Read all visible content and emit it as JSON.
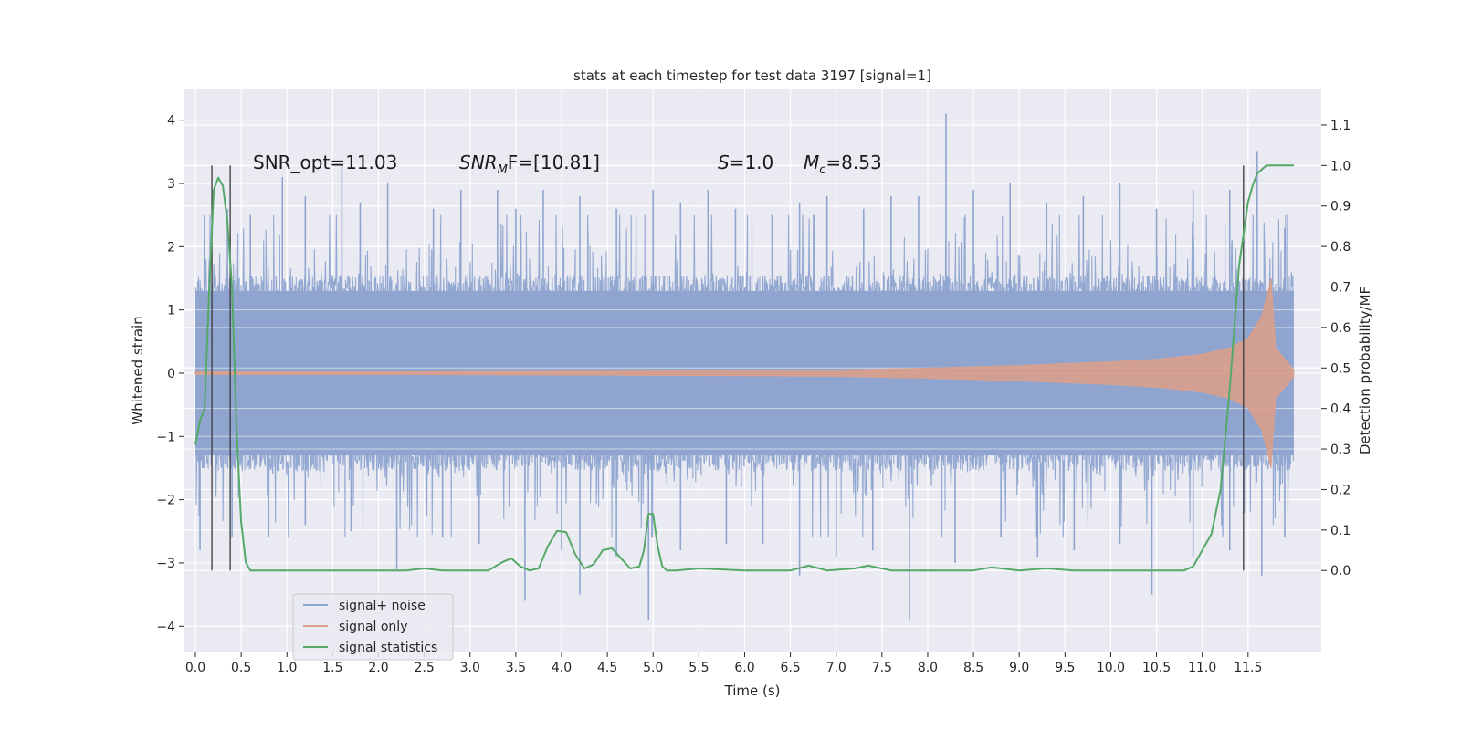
{
  "chart_data": {
    "type": "line",
    "title": "stats at each timestep for test data 3197 [signal=1]",
    "xlabel": "Time (s)",
    "ylabel_left": "Whitened strain",
    "ylabel_right": "Detection probability/MF",
    "xlim": [
      -0.12,
      12.3
    ],
    "ylim_left": [
      -4.4,
      4.5
    ],
    "ylim_right": [
      -0.2,
      1.19
    ],
    "x_ticks": [
      0,
      0.5,
      1,
      1.5,
      2,
      2.5,
      3,
      3.5,
      4,
      4.5,
      5,
      5.5,
      6,
      6.5,
      7,
      7.5,
      8,
      8.5,
      9,
      9.5,
      10,
      10.5,
      11,
      11.5
    ],
    "x_tick_labels": [
      "0.0",
      "0.5",
      "1.0",
      "1.5",
      "2.0",
      "2.5",
      "3.0",
      "3.5",
      "4.0",
      "4.5",
      "5.0",
      "5.5",
      "6.0",
      "6.5",
      "7.0",
      "7.5",
      "8.0",
      "8.5",
      "9.0",
      "9.5",
      "10.0",
      "10.5",
      "11.0",
      "11.5"
    ],
    "y_left_ticks": [
      -4,
      -3,
      -2,
      -1,
      0,
      1,
      2,
      3,
      4
    ],
    "y_left_tick_labels": [
      "−4",
      "−3",
      "−2",
      "−1",
      "0",
      "1",
      "2",
      "3",
      "4"
    ],
    "y_right_ticks": [
      0,
      0.1,
      0.2,
      0.3,
      0.4,
      0.5,
      0.6,
      0.7,
      0.8,
      0.9,
      1.0,
      1.1
    ],
    "y_right_tick_labels": [
      "0.0",
      "0.1",
      "0.2",
      "0.3",
      "0.4",
      "0.5",
      "0.6",
      "0.7",
      "0.8",
      "0.9",
      "1.0",
      "1.1"
    ],
    "grid": true,
    "legend_placement": "lower-left",
    "annotations": [
      {
        "text": "SNR_opt=11.03"
      },
      {
        "text": "SNR",
        "sub": "M",
        "rest": "F=[10.81]"
      },
      {
        "text": "S",
        "rest": "=1.0"
      },
      {
        "text": "M",
        "sub": "c",
        "rest": "=8.53"
      }
    ],
    "vertical_markers": [
      0.18,
      0.38,
      11.45
    ],
    "series": [
      {
        "name": "signal+ noise",
        "color": "#8fa5d0",
        "x_range": [
          0,
          12.0
        ],
        "band_typical": [
          -1.3,
          1.3
        ],
        "peaks_high": [
          [
            0.1,
            2.1
          ],
          [
            0.35,
            2.6
          ],
          [
            0.6,
            2.5
          ],
          [
            0.95,
            3.1
          ],
          [
            1.2,
            2.8
          ],
          [
            1.6,
            3.3
          ],
          [
            1.8,
            2.7
          ],
          [
            2.1,
            3.0
          ],
          [
            2.6,
            2.6
          ],
          [
            2.9,
            2.9
          ],
          [
            3.3,
            2.9
          ],
          [
            3.5,
            2.6
          ],
          [
            3.8,
            2.9
          ],
          [
            4.2,
            2.8
          ],
          [
            4.6,
            2.6
          ],
          [
            5.0,
            2.9
          ],
          [
            5.3,
            2.7
          ],
          [
            5.6,
            2.9
          ],
          [
            5.9,
            2.6
          ],
          [
            6.3,
            2.5
          ],
          [
            6.6,
            2.7
          ],
          [
            6.9,
            2.8
          ],
          [
            7.3,
            2.6
          ],
          [
            7.6,
            2.8
          ],
          [
            7.9,
            2.8
          ],
          [
            8.2,
            4.1
          ],
          [
            8.5,
            2.9
          ],
          [
            8.9,
            3.0
          ],
          [
            9.3,
            2.7
          ],
          [
            9.7,
            2.8
          ],
          [
            10.1,
            3.0
          ],
          [
            10.5,
            2.6
          ],
          [
            10.9,
            2.9
          ],
          [
            11.3,
            2.9
          ],
          [
            11.6,
            3.5
          ],
          [
            11.9,
            2.3
          ]
        ],
        "peaks_low": [
          [
            0.05,
            -2.8
          ],
          [
            0.4,
            -2.6
          ],
          [
            0.8,
            -2.6
          ],
          [
            1.2,
            -2.4
          ],
          [
            1.7,
            -2.5
          ],
          [
            2.2,
            -3.1
          ],
          [
            2.7,
            -2.6
          ],
          [
            3.1,
            -2.7
          ],
          [
            3.6,
            -3.6
          ],
          [
            4.0,
            -2.8
          ],
          [
            4.2,
            -3.5
          ],
          [
            4.6,
            -2.9
          ],
          [
            4.95,
            -3.9
          ],
          [
            5.3,
            -2.8
          ],
          [
            5.8,
            -2.7
          ],
          [
            6.2,
            -2.7
          ],
          [
            6.6,
            -3.2
          ],
          [
            7.0,
            -2.9
          ],
          [
            7.4,
            -2.8
          ],
          [
            7.8,
            -3.9
          ],
          [
            8.3,
            -3.0
          ],
          [
            8.8,
            -2.6
          ],
          [
            9.2,
            -2.9
          ],
          [
            9.6,
            -2.8
          ],
          [
            10.1,
            -2.7
          ],
          [
            10.45,
            -3.5
          ],
          [
            10.9,
            -2.9
          ],
          [
            11.3,
            -2.8
          ],
          [
            11.65,
            -3.2
          ],
          [
            11.9,
            -2.6
          ]
        ]
      },
      {
        "name": "signal only",
        "color": "#d9a08c",
        "x_range": [
          0,
          12.0
        ],
        "envelope": [
          [
            0,
            0.02
          ],
          [
            2,
            0.02
          ],
          [
            4,
            0.03
          ],
          [
            6,
            0.04
          ],
          [
            7,
            0.05
          ],
          [
            8,
            0.08
          ],
          [
            9,
            0.12
          ],
          [
            10,
            0.18
          ],
          [
            10.5,
            0.22
          ],
          [
            11,
            0.3
          ],
          [
            11.3,
            0.4
          ],
          [
            11.5,
            0.55
          ],
          [
            11.65,
            0.9
          ],
          [
            11.72,
            1.3
          ],
          [
            11.75,
            1.5
          ],
          [
            11.8,
            0.4
          ],
          [
            12.0,
            0.05
          ]
        ]
      },
      {
        "name": "signal statistics",
        "color": "#55a868",
        "x": [
          0,
          0.05,
          0.1,
          0.15,
          0.2,
          0.25,
          0.3,
          0.35,
          0.4,
          0.45,
          0.5,
          0.55,
          0.6,
          0.8,
          1.0,
          1.5,
          2.0,
          2.3,
          2.5,
          2.7,
          3.0,
          3.2,
          3.35,
          3.45,
          3.55,
          3.65,
          3.75,
          3.85,
          3.95,
          4.05,
          4.15,
          4.25,
          4.35,
          4.45,
          4.55,
          4.65,
          4.75,
          4.85,
          4.9,
          4.95,
          5.0,
          5.05,
          5.1,
          5.15,
          5.25,
          5.5,
          6.0,
          6.5,
          6.7,
          6.9,
          7.2,
          7.35,
          7.6,
          8.0,
          8.5,
          8.7,
          9.0,
          9.3,
          9.6,
          10.0,
          10.5,
          10.8,
          10.9,
          11.0,
          11.1,
          11.2,
          11.3,
          11.4,
          11.5,
          11.55,
          11.6,
          11.65,
          11.7,
          11.8,
          11.9,
          12.0
        ],
        "y": [
          0.31,
          0.37,
          0.4,
          0.69,
          0.94,
          0.97,
          0.95,
          0.86,
          0.7,
          0.35,
          0.12,
          0.02,
          0.0,
          0.0,
          0.0,
          0.0,
          0.0,
          0.0,
          0.005,
          0.0,
          0.0,
          0.0,
          0.02,
          0.03,
          0.01,
          0.0,
          0.005,
          0.06,
          0.098,
          0.095,
          0.04,
          0.005,
          0.015,
          0.05,
          0.055,
          0.03,
          0.005,
          0.01,
          0.05,
          0.14,
          0.14,
          0.06,
          0.01,
          0.0,
          0.0,
          0.005,
          0.0,
          0.0,
          0.012,
          0.0,
          0.005,
          0.012,
          0.0,
          0.0,
          0.0,
          0.008,
          0.0,
          0.005,
          0.0,
          0.0,
          0.0,
          0.0,
          0.01,
          0.05,
          0.09,
          0.2,
          0.45,
          0.75,
          0.91,
          0.95,
          0.98,
          0.99,
          1.0,
          1.0,
          1.0,
          1.0
        ]
      }
    ]
  }
}
